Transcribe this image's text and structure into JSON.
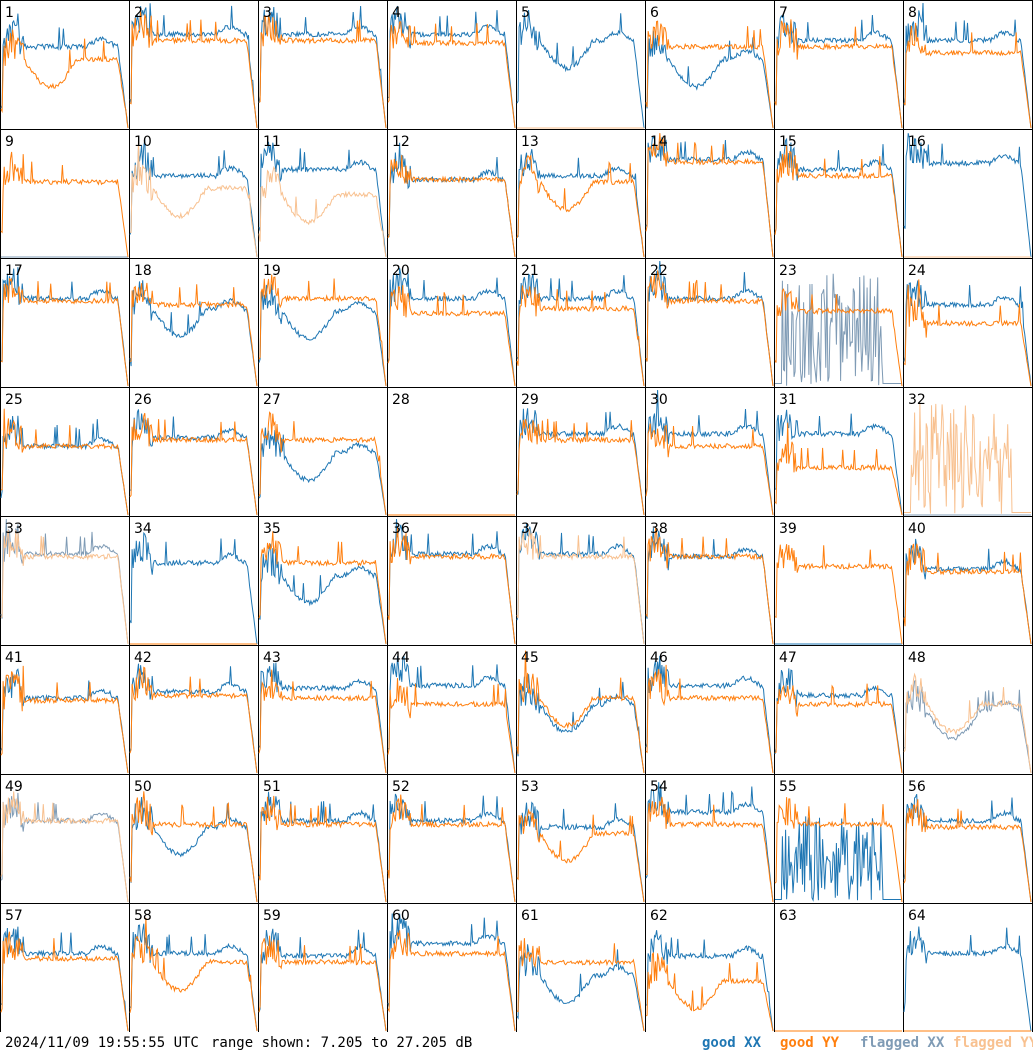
{
  "footer": {
    "timestamp": "2024/11/09 19:55:55 UTC",
    "range_text": "range shown: 7.205 to 27.205 dB"
  },
  "legend": {
    "good_xx": "good XX",
    "good_yy": "good YY",
    "flagged_xx": "flagged XX",
    "flagged_yy": "flagged YY"
  },
  "colors": {
    "good_xx": "#1f77b4",
    "good_yy": "#ff7f0e",
    "flagged_xx": "#7f9bb5",
    "flagged_yy": "#f8c190",
    "grid_line": "#000000"
  },
  "chart_data": {
    "type": "line",
    "grid": {
      "rows": 8,
      "cols": 8
    },
    "ylim": [
      7.205,
      27.205
    ],
    "y_unit": "dB",
    "series_keys": [
      "good_xx",
      "good_yy",
      "flagged_xx",
      "flagged_yy"
    ],
    "panels": [
      {
        "label": "1",
        "xx": {
          "state": "good",
          "shape": "normal",
          "level": 0.65
        },
        "yy": {
          "state": "good",
          "shape": "dip",
          "level": 0.55
        }
      },
      {
        "label": "2",
        "xx": {
          "state": "good",
          "shape": "normal",
          "level": 0.75
        },
        "yy": {
          "state": "good",
          "shape": "normal",
          "level": 0.7
        }
      },
      {
        "label": "3",
        "xx": {
          "state": "good",
          "shape": "normal",
          "level": 0.75
        },
        "yy": {
          "state": "good",
          "shape": "normal",
          "level": 0.7
        }
      },
      {
        "label": "4",
        "xx": {
          "state": "good",
          "shape": "normal",
          "level": 0.75
        },
        "yy": {
          "state": "good",
          "shape": "normal",
          "level": 0.68
        }
      },
      {
        "label": "5",
        "xx": {
          "state": "good",
          "shape": "dip",
          "level": 0.7
        },
        "yy": {
          "state": "flagged",
          "shape": "dead",
          "level": 0.0
        }
      },
      {
        "label": "6",
        "xx": {
          "state": "good",
          "shape": "dip",
          "level": 0.55
        },
        "yy": {
          "state": "good",
          "shape": "normal",
          "level": 0.65
        }
      },
      {
        "label": "7",
        "xx": {
          "state": "good",
          "shape": "normal",
          "level": 0.7
        },
        "yy": {
          "state": "good",
          "shape": "normal",
          "level": 0.65
        }
      },
      {
        "label": "8",
        "xx": {
          "state": "good",
          "shape": "normal",
          "level": 0.7
        },
        "yy": {
          "state": "good",
          "shape": "normal",
          "level": 0.6
        }
      },
      {
        "label": "9",
        "xx": {
          "state": "flagged",
          "shape": "dead",
          "level": 0.0
        },
        "yy": {
          "state": "good",
          "shape": "normal",
          "level": 0.6
        }
      },
      {
        "label": "10",
        "xx": {
          "state": "good",
          "shape": "normal",
          "level": 0.65
        },
        "yy": {
          "state": "flagged",
          "shape": "dip",
          "level": 0.55
        }
      },
      {
        "label": "11",
        "xx": {
          "state": "good",
          "shape": "normal",
          "level": 0.7
        },
        "yy": {
          "state": "flagged",
          "shape": "dip",
          "level": 0.5
        }
      },
      {
        "label": "12",
        "xx": {
          "state": "good",
          "shape": "normal",
          "level": 0.62
        },
        "yy": {
          "state": "good",
          "shape": "normal",
          "level": 0.62
        }
      },
      {
        "label": "13",
        "xx": {
          "state": "good",
          "shape": "normal",
          "level": 0.65
        },
        "yy": {
          "state": "good",
          "shape": "dip",
          "level": 0.6
        }
      },
      {
        "label": "14",
        "xx": {
          "state": "good",
          "shape": "normal",
          "level": 0.78
        },
        "yy": {
          "state": "good",
          "shape": "normal",
          "level": 0.76
        }
      },
      {
        "label": "15",
        "xx": {
          "state": "good",
          "shape": "normal",
          "level": 0.7
        },
        "yy": {
          "state": "good",
          "shape": "normal",
          "level": 0.65
        }
      },
      {
        "label": "16",
        "xx": {
          "state": "good",
          "shape": "normal",
          "level": 0.75
        },
        "yy": {
          "state": "flagged",
          "shape": "dead",
          "level": 0.0
        }
      },
      {
        "label": "17",
        "xx": {
          "state": "good",
          "shape": "normal",
          "level": 0.7
        },
        "yy": {
          "state": "good",
          "shape": "normal",
          "level": 0.68
        }
      },
      {
        "label": "18",
        "xx": {
          "state": "good",
          "shape": "dip",
          "level": 0.62
        },
        "yy": {
          "state": "good",
          "shape": "normal",
          "level": 0.65
        }
      },
      {
        "label": "19",
        "xx": {
          "state": "good",
          "shape": "dip",
          "level": 0.6
        },
        "yy": {
          "state": "good",
          "shape": "normal",
          "level": 0.7
        }
      },
      {
        "label": "20",
        "xx": {
          "state": "good",
          "shape": "normal",
          "level": 0.7
        },
        "yy": {
          "state": "good",
          "shape": "normal",
          "level": 0.58
        }
      },
      {
        "label": "21",
        "xx": {
          "state": "good",
          "shape": "normal",
          "level": 0.7
        },
        "yy": {
          "state": "good",
          "shape": "normal",
          "level": 0.62
        }
      },
      {
        "label": "22",
        "xx": {
          "state": "good",
          "shape": "normal",
          "level": 0.7
        },
        "yy": {
          "state": "good",
          "shape": "normal",
          "level": 0.68
        }
      },
      {
        "label": "23",
        "xx": {
          "state": "flagged",
          "shape": "noisy",
          "level": 0.4
        },
        "yy": {
          "state": "good",
          "shape": "normal",
          "level": 0.6
        }
      },
      {
        "label": "24",
        "xx": {
          "state": "good",
          "shape": "normal",
          "level": 0.65
        },
        "yy": {
          "state": "good",
          "shape": "normal",
          "level": 0.5
        }
      },
      {
        "label": "25",
        "xx": {
          "state": "good",
          "shape": "normal",
          "level": 0.55
        },
        "yy": {
          "state": "good",
          "shape": "normal",
          "level": 0.55
        }
      },
      {
        "label": "26",
        "xx": {
          "state": "good",
          "shape": "normal",
          "level": 0.62
        },
        "yy": {
          "state": "good",
          "shape": "normal",
          "level": 0.6
        }
      },
      {
        "label": "27",
        "xx": {
          "state": "good",
          "shape": "dip",
          "level": 0.5
        },
        "yy": {
          "state": "good",
          "shape": "normal",
          "level": 0.6
        }
      },
      {
        "label": "28",
        "xx": {
          "state": "good",
          "shape": "dead",
          "level": 0.0
        },
        "yy": {
          "state": "good",
          "shape": "dead",
          "level": 0.0
        }
      },
      {
        "label": "29",
        "xx": {
          "state": "good",
          "shape": "normal",
          "level": 0.65
        },
        "yy": {
          "state": "good",
          "shape": "normal",
          "level": 0.6
        }
      },
      {
        "label": "30",
        "xx": {
          "state": "good",
          "shape": "normal",
          "level": 0.65
        },
        "yy": {
          "state": "good",
          "shape": "normal",
          "level": 0.55
        }
      },
      {
        "label": "31",
        "xx": {
          "state": "good",
          "shape": "normal",
          "level": 0.65
        },
        "yy": {
          "state": "good",
          "shape": "normal",
          "level": 0.38
        }
      },
      {
        "label": "32",
        "xx": {
          "state": "flagged",
          "shape": "dead",
          "level": 0.0
        },
        "yy": {
          "state": "flagged",
          "shape": "noisy",
          "level": 0.4
        }
      },
      {
        "label": "33",
        "xx": {
          "state": "flagged",
          "shape": "normal",
          "level": 0.72
        },
        "yy": {
          "state": "flagged",
          "shape": "normal",
          "level": 0.7
        }
      },
      {
        "label": "34",
        "xx": {
          "state": "good",
          "shape": "normal",
          "level": 0.65
        },
        "yy": {
          "state": "good",
          "shape": "dead",
          "level": 0.0
        }
      },
      {
        "label": "35",
        "xx": {
          "state": "good",
          "shape": "dip",
          "level": 0.55
        },
        "yy": {
          "state": "good",
          "shape": "normal",
          "level": 0.65
        }
      },
      {
        "label": "36",
        "xx": {
          "state": "good",
          "shape": "normal",
          "level": 0.72
        },
        "yy": {
          "state": "good",
          "shape": "normal",
          "level": 0.7
        }
      },
      {
        "label": "37",
        "xx": {
          "state": "good",
          "shape": "normal",
          "level": 0.72
        },
        "yy": {
          "state": "flagged",
          "shape": "normal",
          "level": 0.7
        }
      },
      {
        "label": "38",
        "xx": {
          "state": "good",
          "shape": "normal",
          "level": 0.7
        },
        "yy": {
          "state": "good",
          "shape": "normal",
          "level": 0.7
        }
      },
      {
        "label": "39",
        "xx": {
          "state": "good",
          "shape": "dead",
          "level": 0.0
        },
        "yy": {
          "state": "good",
          "shape": "normal",
          "level": 0.62
        }
      },
      {
        "label": "40",
        "xx": {
          "state": "good",
          "shape": "normal",
          "level": 0.6
        },
        "yy": {
          "state": "good",
          "shape": "normal",
          "level": 0.58
        }
      },
      {
        "label": "41",
        "xx": {
          "state": "good",
          "shape": "normal",
          "level": 0.6
        },
        "yy": {
          "state": "good",
          "shape": "normal",
          "level": 0.58
        }
      },
      {
        "label": "42",
        "xx": {
          "state": "good",
          "shape": "normal",
          "level": 0.65
        },
        "yy": {
          "state": "good",
          "shape": "normal",
          "level": 0.62
        }
      },
      {
        "label": "43",
        "xx": {
          "state": "good",
          "shape": "normal",
          "level": 0.68
        },
        "yy": {
          "state": "good",
          "shape": "normal",
          "level": 0.6
        }
      },
      {
        "label": "44",
        "xx": {
          "state": "good",
          "shape": "normal",
          "level": 0.7
        },
        "yy": {
          "state": "good",
          "shape": "normal",
          "level": 0.55
        }
      },
      {
        "label": "45",
        "xx": {
          "state": "good",
          "shape": "dip",
          "level": 0.55
        },
        "yy": {
          "state": "good",
          "shape": "dip",
          "level": 0.6
        }
      },
      {
        "label": "46",
        "xx": {
          "state": "good",
          "shape": "normal",
          "level": 0.7
        },
        "yy": {
          "state": "good",
          "shape": "normal",
          "level": 0.6
        }
      },
      {
        "label": "47",
        "xx": {
          "state": "good",
          "shape": "normal",
          "level": 0.62
        },
        "yy": {
          "state": "good",
          "shape": "normal",
          "level": 0.55
        }
      },
      {
        "label": "48",
        "xx": {
          "state": "flagged",
          "shape": "dip",
          "level": 0.5
        },
        "yy": {
          "state": "flagged",
          "shape": "dip",
          "level": 0.55
        }
      },
      {
        "label": "49",
        "xx": {
          "state": "flagged",
          "shape": "normal",
          "level": 0.65
        },
        "yy": {
          "state": "flagged",
          "shape": "normal",
          "level": 0.65
        }
      },
      {
        "label": "50",
        "xx": {
          "state": "good",
          "shape": "dip",
          "level": 0.6
        },
        "yy": {
          "state": "good",
          "shape": "normal",
          "level": 0.62
        }
      },
      {
        "label": "51",
        "xx": {
          "state": "good",
          "shape": "normal",
          "level": 0.65
        },
        "yy": {
          "state": "good",
          "shape": "normal",
          "level": 0.62
        }
      },
      {
        "label": "52",
        "xx": {
          "state": "good",
          "shape": "normal",
          "level": 0.65
        },
        "yy": {
          "state": "good",
          "shape": "normal",
          "level": 0.62
        }
      },
      {
        "label": "53",
        "xx": {
          "state": "good",
          "shape": "normal",
          "level": 0.6
        },
        "yy": {
          "state": "good",
          "shape": "dip",
          "level": 0.55
        }
      },
      {
        "label": "54",
        "xx": {
          "state": "good",
          "shape": "normal",
          "level": 0.72
        },
        "yy": {
          "state": "good",
          "shape": "normal",
          "level": 0.62
        }
      },
      {
        "label": "55",
        "xx": {
          "state": "good",
          "shape": "noisy",
          "level": 0.2
        },
        "yy": {
          "state": "good",
          "shape": "normal",
          "level": 0.62
        }
      },
      {
        "label": "56",
        "xx": {
          "state": "good",
          "shape": "normal",
          "level": 0.65
        },
        "yy": {
          "state": "good",
          "shape": "normal",
          "level": 0.6
        }
      },
      {
        "label": "57",
        "xx": {
          "state": "good",
          "shape": "normal",
          "level": 0.62
        },
        "yy": {
          "state": "good",
          "shape": "normal",
          "level": 0.58
        }
      },
      {
        "label": "58",
        "xx": {
          "state": "good",
          "shape": "normal",
          "level": 0.62
        },
        "yy": {
          "state": "good",
          "shape": "dip",
          "level": 0.55
        }
      },
      {
        "label": "59",
        "xx": {
          "state": "good",
          "shape": "normal",
          "level": 0.6
        },
        "yy": {
          "state": "good",
          "shape": "normal",
          "level": 0.55
        }
      },
      {
        "label": "60",
        "xx": {
          "state": "good",
          "shape": "normal",
          "level": 0.7
        },
        "yy": {
          "state": "good",
          "shape": "normal",
          "level": 0.62
        }
      },
      {
        "label": "61",
        "xx": {
          "state": "good",
          "shape": "dip",
          "level": 0.45
        },
        "yy": {
          "state": "good",
          "shape": "normal",
          "level": 0.55
        }
      },
      {
        "label": "62",
        "xx": {
          "state": "good",
          "shape": "normal",
          "level": 0.6
        },
        "yy": {
          "state": "good",
          "shape": "dip",
          "level": 0.4
        }
      },
      {
        "label": "63",
        "xx": {
          "state": "good",
          "shape": "dead",
          "level": 0.0
        },
        "yy": {
          "state": "good",
          "shape": "dead",
          "level": 0.0
        }
      },
      {
        "label": "64",
        "xx": {
          "state": "good",
          "shape": "normal",
          "level": 0.62
        },
        "yy": {
          "state": "good",
          "shape": "dead",
          "level": 0.0
        }
      }
    ]
  }
}
